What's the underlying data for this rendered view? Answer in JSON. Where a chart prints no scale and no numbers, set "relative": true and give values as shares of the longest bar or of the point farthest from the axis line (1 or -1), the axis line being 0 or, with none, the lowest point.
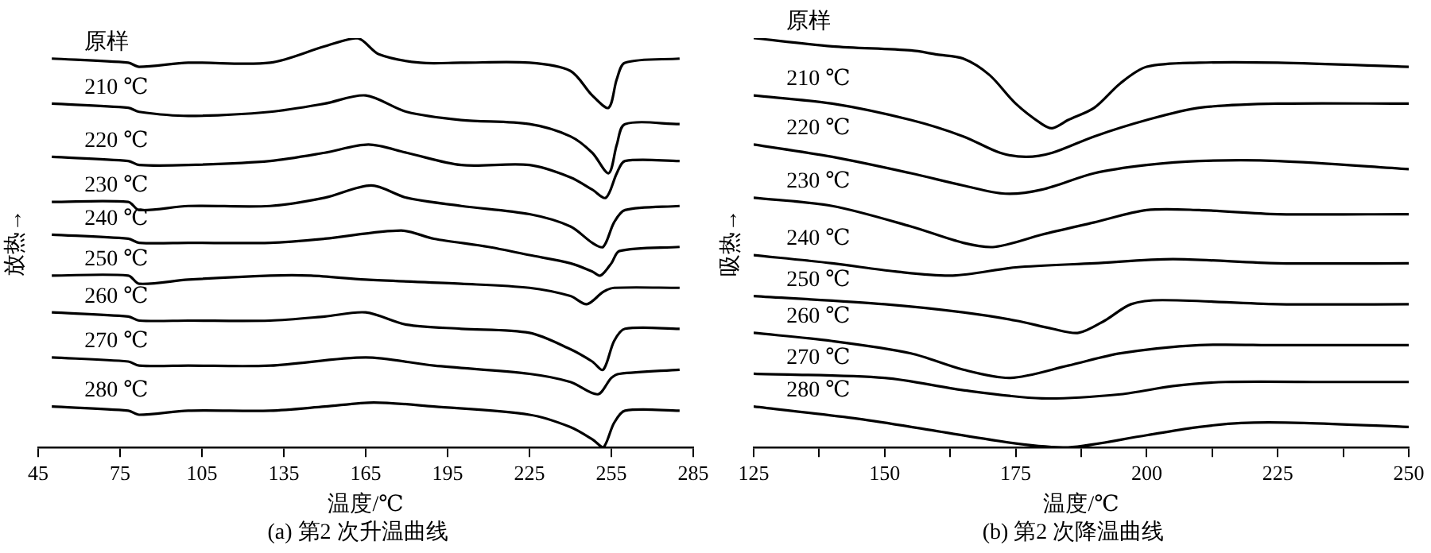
{
  "chart_data": [
    {
      "type": "line",
      "xlabel": "温度/℃",
      "ylabel": "放热→",
      "annotations": [
        "(a) 第2 次升温曲线"
      ],
      "relative": true,
      "grid": false,
      "legend": false,
      "line_style": "solid",
      "xlim": [
        45,
        285
      ],
      "xticks": [
        45,
        75,
        105,
        135,
        165,
        195,
        225,
        255,
        285
      ],
      "series": [
        {
          "name": "原样",
          "color": "#000000",
          "x": [
            50,
            78,
            82,
            100,
            130,
            150,
            162,
            170,
            185,
            200,
            225,
            240,
            248,
            254,
            257,
            260,
            280
          ],
          "values": [
            0.95,
            0.94,
            0.93,
            0.94,
            0.94,
            0.98,
            1.0,
            0.96,
            0.94,
            0.94,
            0.94,
            0.92,
            0.86,
            0.83,
            0.9,
            0.94,
            0.95
          ]
        },
        {
          "name": "210 ℃",
          "color": "#000000",
          "x": [
            50,
            78,
            82,
            100,
            130,
            150,
            165,
            180,
            200,
            225,
            240,
            248,
            254,
            257,
            260,
            280
          ],
          "values": [
            0.84,
            0.83,
            0.82,
            0.81,
            0.82,
            0.84,
            0.86,
            0.82,
            0.8,
            0.79,
            0.76,
            0.72,
            0.67,
            0.74,
            0.79,
            0.79
          ]
        },
        {
          "name": "220 ℃",
          "color": "#000000",
          "x": [
            50,
            78,
            82,
            100,
            130,
            150,
            166,
            180,
            200,
            225,
            240,
            248,
            253,
            257,
            260,
            280
          ],
          "values": [
            0.71,
            0.7,
            0.69,
            0.69,
            0.7,
            0.72,
            0.74,
            0.72,
            0.69,
            0.69,
            0.66,
            0.63,
            0.61,
            0.67,
            0.7,
            0.7
          ]
        },
        {
          "name": "230 ℃",
          "color": "#000000",
          "x": [
            50,
            78,
            82,
            100,
            130,
            150,
            167,
            180,
            200,
            225,
            240,
            248,
            252,
            256,
            260,
            280
          ],
          "values": [
            0.6,
            0.6,
            0.58,
            0.59,
            0.59,
            0.61,
            0.64,
            0.61,
            0.59,
            0.57,
            0.54,
            0.5,
            0.49,
            0.55,
            0.58,
            0.59
          ]
        },
        {
          "name": "240 ℃",
          "color": "#000000",
          "x": [
            50,
            78,
            82,
            100,
            130,
            150,
            178,
            190,
            210,
            225,
            240,
            248,
            251,
            255,
            258,
            280
          ],
          "values": [
            0.52,
            0.51,
            0.5,
            0.5,
            0.5,
            0.51,
            0.53,
            0.51,
            0.49,
            0.47,
            0.45,
            0.43,
            0.42,
            0.45,
            0.48,
            0.49
          ]
        },
        {
          "name": "250 ℃",
          "color": "#000000",
          "x": [
            50,
            78,
            82,
            100,
            130,
            145,
            165,
            200,
            225,
            240,
            246,
            252,
            256,
            280
          ],
          "values": [
            0.42,
            0.42,
            0.4,
            0.41,
            0.42,
            0.42,
            0.41,
            0.4,
            0.39,
            0.37,
            0.35,
            0.38,
            0.39,
            0.39
          ]
        },
        {
          "name": "260 ℃",
          "color": "#000000",
          "x": [
            50,
            78,
            82,
            100,
            130,
            150,
            165,
            180,
            200,
            225,
            240,
            248,
            252,
            256,
            260,
            280
          ],
          "values": [
            0.33,
            0.32,
            0.31,
            0.31,
            0.31,
            0.32,
            0.33,
            0.3,
            0.29,
            0.28,
            0.24,
            0.21,
            0.19,
            0.26,
            0.29,
            0.29
          ]
        },
        {
          "name": "270 ℃",
          "color": "#000000",
          "x": [
            50,
            78,
            82,
            100,
            130,
            165,
            190,
            225,
            240,
            250,
            255,
            258,
            280
          ],
          "values": [
            0.22,
            0.21,
            0.2,
            0.2,
            0.2,
            0.22,
            0.2,
            0.18,
            0.16,
            0.13,
            0.17,
            0.18,
            0.19
          ]
        },
        {
          "name": "280 ℃",
          "color": "#000000",
          "x": [
            50,
            78,
            82,
            100,
            130,
            150,
            168,
            190,
            225,
            240,
            248,
            252,
            256,
            260,
            280
          ],
          "values": [
            0.1,
            0.09,
            0.08,
            0.09,
            0.09,
            0.1,
            0.11,
            0.1,
            0.08,
            0.05,
            0.02,
            0,
            0.06,
            0.09,
            0.09
          ]
        }
      ]
    },
    {
      "type": "line",
      "xlabel": "温度/℃",
      "ylabel": "吸热→",
      "annotations": [
        "(b) 第2 次降温曲线"
      ],
      "relative": true,
      "grid": false,
      "legend": false,
      "line_style": "solid",
      "xlim": [
        125,
        250
      ],
      "xticks": [
        125,
        {
          "value": 137.5,
          "label": null
        },
        150,
        {
          "value": 162.5,
          "label": null
        },
        175,
        {
          "value": 187.5,
          "label": null
        },
        200,
        {
          "value": 212.5,
          "label": null
        },
        225,
        {
          "value": 237.5,
          "label": null
        },
        250
      ],
      "series": [
        {
          "name": "原样",
          "color": "#000000",
          "x": [
            125,
            140,
            155,
            160,
            165,
            170,
            175,
            180,
            182,
            185,
            190,
            195,
            200,
            210,
            225,
            250
          ],
          "values": [
            1,
            0.98,
            0.97,
            0.96,
            0.95,
            0.91,
            0.84,
            0.79,
            0.78,
            0.8,
            0.83,
            0.89,
            0.93,
            0.94,
            0.94,
            0.93
          ]
        },
        {
          "name": "210 ℃",
          "color": "#000000",
          "x": [
            125,
            140,
            155,
            165,
            172,
            177,
            182,
            190,
            200,
            210,
            225,
            250
          ],
          "values": [
            0.86,
            0.84,
            0.8,
            0.76,
            0.72,
            0.71,
            0.72,
            0.76,
            0.8,
            0.83,
            0.84,
            0.84
          ]
        },
        {
          "name": "220 ℃",
          "color": "#000000",
          "x": [
            125,
            140,
            155,
            165,
            173,
            180,
            190,
            200,
            210,
            225,
            250
          ],
          "values": [
            0.74,
            0.71,
            0.67,
            0.64,
            0.62,
            0.63,
            0.67,
            0.69,
            0.7,
            0.7,
            0.68
          ]
        },
        {
          "name": "230 ℃",
          "color": "#000000",
          "x": [
            125,
            140,
            155,
            165,
            171,
            180,
            190,
            200,
            210,
            225,
            250
          ],
          "values": [
            0.61,
            0.59,
            0.54,
            0.5,
            0.49,
            0.52,
            0.55,
            0.58,
            0.58,
            0.57,
            0.57
          ]
        },
        {
          "name": "240 ℃",
          "color": "#000000",
          "x": [
            125,
            140,
            152,
            163,
            175,
            190,
            205,
            225,
            250
          ],
          "values": [
            0.47,
            0.45,
            0.43,
            0.42,
            0.44,
            0.45,
            0.46,
            0.45,
            0.45
          ]
        },
        {
          "name": "250 ℃",
          "color": "#000000",
          "x": [
            125,
            150,
            165,
            175,
            182,
            187,
            192,
            197,
            203,
            225,
            250
          ],
          "values": [
            0.37,
            0.35,
            0.33,
            0.31,
            0.29,
            0.28,
            0.31,
            0.35,
            0.36,
            0.35,
            0.35
          ]
        },
        {
          "name": "260 ℃",
          "color": "#000000",
          "x": [
            125,
            140,
            155,
            165,
            174,
            185,
            195,
            210,
            225,
            250
          ],
          "values": [
            0.28,
            0.26,
            0.23,
            0.19,
            0.17,
            0.2,
            0.23,
            0.25,
            0.25,
            0.25
          ]
        },
        {
          "name": "270 ℃",
          "color": "#000000",
          "x": [
            125,
            150,
            165,
            180,
            195,
            205,
            215,
            235,
            250
          ],
          "values": [
            0.18,
            0.17,
            0.14,
            0.12,
            0.13,
            0.15,
            0.16,
            0.16,
            0.16
          ]
        },
        {
          "name": "280 ℃",
          "color": "#000000",
          "x": [
            125,
            145,
            160,
            175,
            185,
            200,
            210,
            218,
            230,
            250
          ],
          "values": [
            0.1,
            0.07,
            0.04,
            0.01,
            0,
            0.03,
            0.05,
            0.06,
            0.06,
            0.05
          ]
        }
      ]
    }
  ]
}
